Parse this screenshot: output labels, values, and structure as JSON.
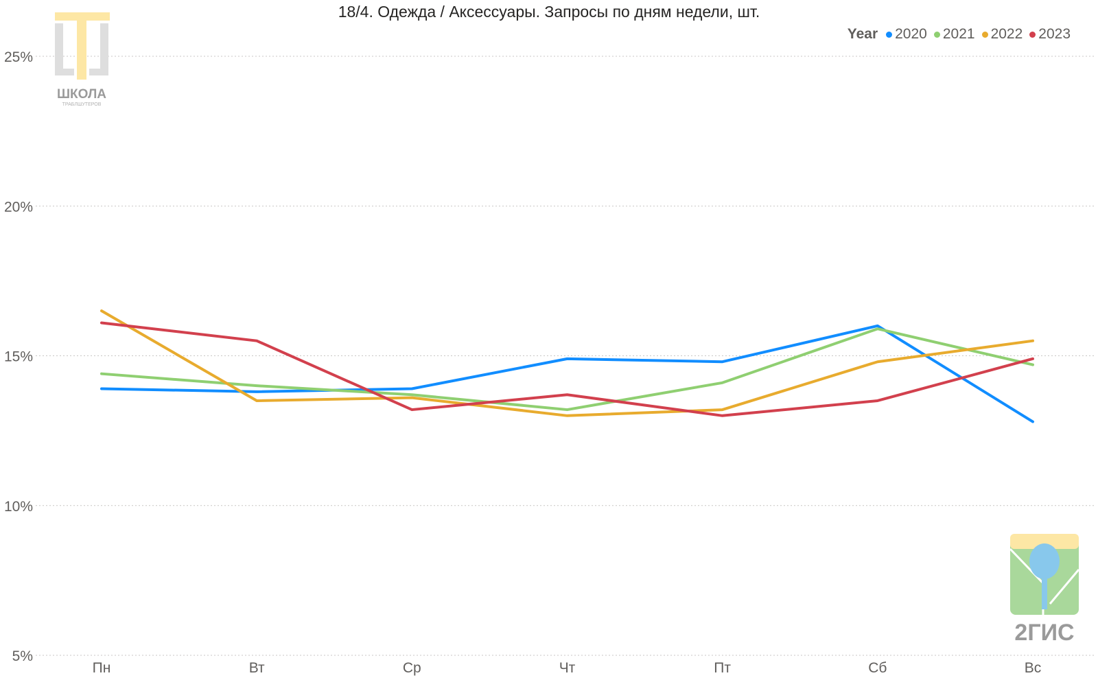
{
  "chart_data": {
    "type": "line",
    "title": "18/4. Одежда / Аксессуары. Запросы по дням недели, шт.",
    "categories": [
      "Пн",
      "Вт",
      "Ср",
      "Чт",
      "Пт",
      "Сб",
      "Вс"
    ],
    "y_ticks": [
      "25%",
      "20%",
      "15%",
      "10%",
      "5%"
    ],
    "ylim": [
      5,
      25
    ],
    "y_unit": "%",
    "grid": true,
    "legend": {
      "title": "Year",
      "placement": "top-right"
    },
    "series": [
      {
        "name": "2020",
        "color": "#118dff",
        "values": [
          13.9,
          13.8,
          13.9,
          14.9,
          14.8,
          16.0,
          12.8
        ]
      },
      {
        "name": "2021",
        "color": "#8fcf71",
        "values": [
          14.4,
          14.0,
          13.7,
          13.2,
          14.1,
          15.9,
          14.7
        ]
      },
      {
        "name": "2022",
        "color": "#e8ab2e",
        "values": [
          16.5,
          13.5,
          13.6,
          13.0,
          13.2,
          14.8,
          15.5
        ]
      },
      {
        "name": "2023",
        "color": "#d2404d",
        "values": [
          16.1,
          15.5,
          13.2,
          13.7,
          13.0,
          13.5,
          14.9
        ]
      }
    ]
  },
  "logos": {
    "top_left": {
      "name": "ШКОЛА",
      "sub": "ТРАБЛШУТЕРОВ"
    },
    "bottom_right": {
      "name": "2ГИС"
    }
  }
}
